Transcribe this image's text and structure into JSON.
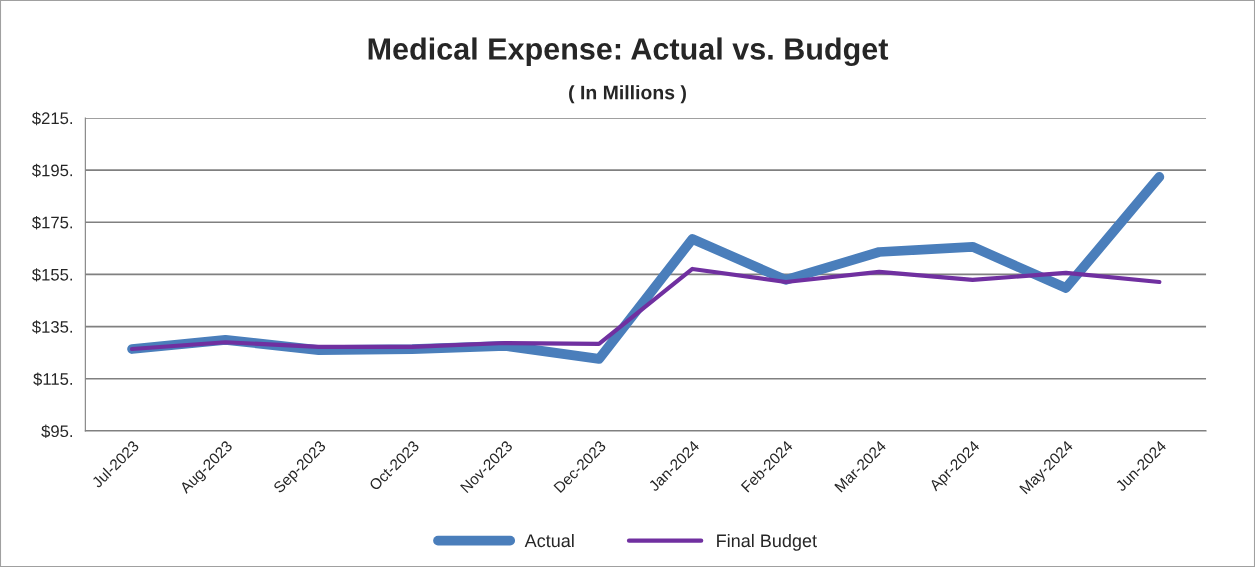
{
  "chart_data": {
    "type": "line",
    "title": "Medical Expense: Actual vs. Budget",
    "subtitle": "( In Millions )",
    "categories": [
      "Jul-2023",
      "Aug-2023",
      "Sep-2023",
      "Oct-2023",
      "Nov-2023",
      "Dec-2023",
      "Jan-2024",
      "Feb-2024",
      "Mar-2024",
      "Apr-2024",
      "May-2024",
      "Jun-2024"
    ],
    "series": [
      {
        "name": "Actual",
        "color": "#4a7ebb",
        "values": [
          126.4,
          129.9,
          126,
          126.4,
          127.6,
          122.6,
          168.6,
          152.9,
          163.6,
          165.6,
          149.8,
          192.4
        ]
      },
      {
        "name": "Final Budget",
        "color": "#7030a0",
        "values": [
          126.4,
          129,
          127.2,
          127.2,
          128.7,
          128.4,
          157.1,
          152.1,
          156,
          152.9,
          155.6,
          152.1
        ]
      }
    ],
    "ylim": [
      95,
      215
    ],
    "yticks": [
      {
        "value": 95,
        "label": "$95."
      },
      {
        "value": 115,
        "label": "$115."
      },
      {
        "value": 135,
        "label": "$135."
      },
      {
        "value": 155,
        "label": "$155."
      },
      {
        "value": 175,
        "label": "$175."
      },
      {
        "value": 195,
        "label": "$195."
      },
      {
        "value": 215,
        "label": "$215."
      }
    ],
    "grid": "y",
    "legend": "bottom",
    "marker": "none",
    "line_style": "solid"
  }
}
